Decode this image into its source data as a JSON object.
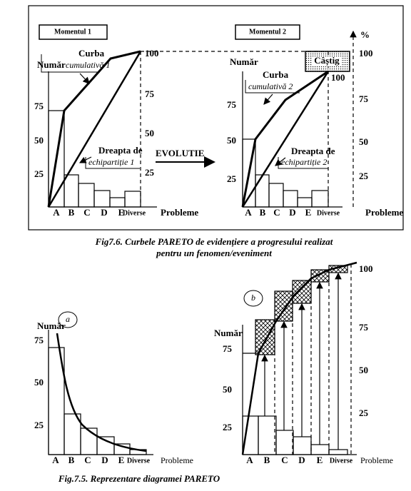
{
  "top_figure": {
    "panel_1": {
      "title": "Momentul 1",
      "y_label": "Număr",
      "left_ticks": [
        75,
        50,
        25
      ],
      "right_ticks": [
        100,
        75,
        50,
        25
      ],
      "curve_label": "Curba",
      "curve_name": "cumulativă 1",
      "line_label": "Dreapta de",
      "line_name": "echipartiție 1",
      "categories": [
        "A",
        "B",
        "C",
        "D",
        "E",
        "Diverse"
      ],
      "x_label": "Probleme"
    },
    "arrow_label": "EVOLUTIE",
    "panel_2": {
      "title": "Momentul 2",
      "y_label": "Număr",
      "left_ticks": [
        75,
        50,
        25
      ],
      "right_axis_unit": "%",
      "right_ticks": [
        100,
        75,
        50,
        25
      ],
      "gain_label": "Câștig",
      "curve_end_label": 100,
      "curve_label": "Curba",
      "curve_name": "cumulativă 2",
      "line_label": "Dreapta de",
      "line_name": "echipartiție 2",
      "categories": [
        "A",
        "B",
        "C",
        "D",
        "E",
        "Diverse"
      ],
      "x_label": "Probleme"
    },
    "caption": [
      "Fig7.6.  Curbele PARETO de  evidențiere a progresului realizat",
      "pentru un fenomen/eveniment"
    ]
  },
  "bottom_figure": {
    "panel_a": {
      "badge": "a",
      "y_label": "Număr",
      "left_ticks": [
        75,
        50,
        25
      ],
      "categories": [
        "A",
        "B",
        "C",
        "D",
        "E",
        "Diverse"
      ],
      "x_label": "Probleme"
    },
    "panel_b": {
      "badge": "b",
      "y_label": "Număr",
      "left_ticks": [
        75,
        50,
        25
      ],
      "right_ticks": [
        100,
        75,
        50,
        25
      ],
      "categories": [
        "A",
        "B",
        "C",
        "D",
        "E",
        "Diverse"
      ],
      "x_label": "Probleme"
    },
    "caption": "Fig.7.5.  Reprezentare diagramei PARETO"
  }
}
